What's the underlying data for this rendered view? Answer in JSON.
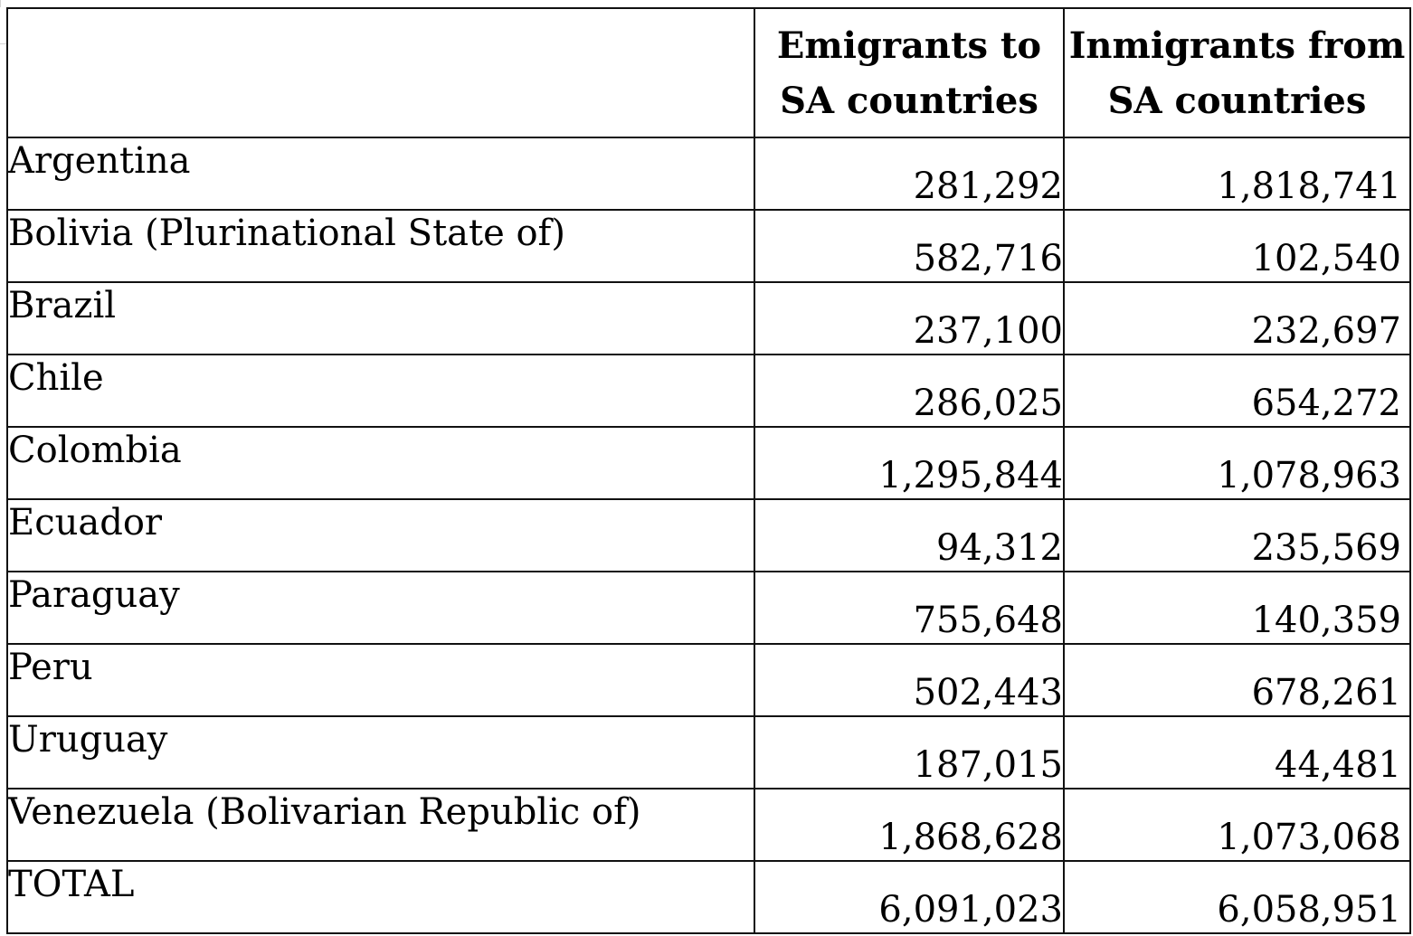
{
  "table": {
    "headers": {
      "corner": "",
      "emigrants": [
        "Emigrants to",
        "SA countries"
      ],
      "inmigrants": [
        "Inmigrants from",
        "SA countries"
      ]
    },
    "rows": [
      {
        "country": "Argentina",
        "emigrants": "281,292",
        "inmigrants": "1,818,741"
      },
      {
        "country": "Bolivia (Plurinational State of)",
        "emigrants": "582,716",
        "inmigrants": "102,540"
      },
      {
        "country": "Brazil",
        "emigrants": "237,100",
        "inmigrants": "232,697"
      },
      {
        "country": "Chile",
        "emigrants": "286,025",
        "inmigrants": "654,272"
      },
      {
        "country": "Colombia",
        "emigrants": "1,295,844",
        "inmigrants": "1,078,963"
      },
      {
        "country": "Ecuador",
        "emigrants": "94,312",
        "inmigrants": "235,569"
      },
      {
        "country": "Paraguay",
        "emigrants": "755,648",
        "inmigrants": "140,359"
      },
      {
        "country": "Peru",
        "emigrants": "502,443",
        "inmigrants": "678,261"
      },
      {
        "country": "Uruguay",
        "emigrants": "187,015",
        "inmigrants": "44,481"
      },
      {
        "country": "Venezuela (Bolivarian Republic of)",
        "emigrants": "1,868,628",
        "inmigrants": "1,073,068"
      }
    ],
    "total": {
      "label": "TOTAL",
      "emigrants": "6,091,023",
      "inmigrants": "6,058,951"
    }
  }
}
